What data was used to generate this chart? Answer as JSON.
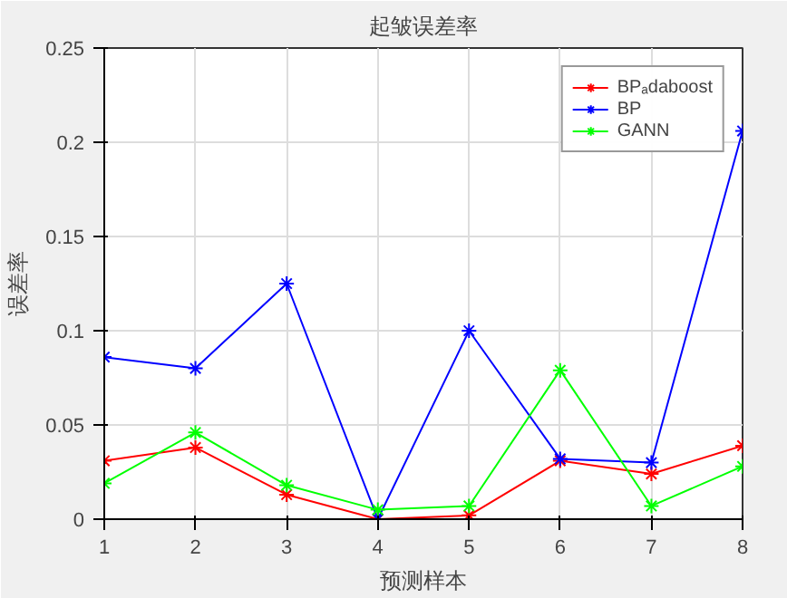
{
  "chart_data": {
    "type": "line",
    "title": "起皱误差率",
    "xlabel": "预测样本",
    "ylabel": "误差率",
    "x": [
      1,
      2,
      3,
      4,
      5,
      6,
      7,
      8
    ],
    "series": [
      {
        "name": "BPₐdaboost",
        "color": "#ff0000",
        "values": [
          0.031,
          0.038,
          0.013,
          0.0,
          0.002,
          0.031,
          0.024,
          0.039
        ]
      },
      {
        "name": "BP",
        "color": "#0000ff",
        "values": [
          0.086,
          0.08,
          0.125,
          0.0,
          0.1,
          0.032,
          0.03,
          0.206
        ]
      },
      {
        "name": "GANN",
        "color": "#00ff00",
        "values": [
          0.019,
          0.046,
          0.018,
          0.005,
          0.007,
          0.079,
          0.007,
          0.028
        ]
      }
    ],
    "xlim": [
      1,
      8
    ],
    "xticks": [
      1,
      2,
      3,
      4,
      5,
      6,
      7,
      8
    ],
    "ylim": [
      0,
      0.25
    ],
    "yticks": [
      0,
      0.05,
      0.1,
      0.15,
      0.2,
      0.25
    ],
    "grid": true,
    "legend": "top right",
    "marker": "cross",
    "line_style": "solid"
  }
}
